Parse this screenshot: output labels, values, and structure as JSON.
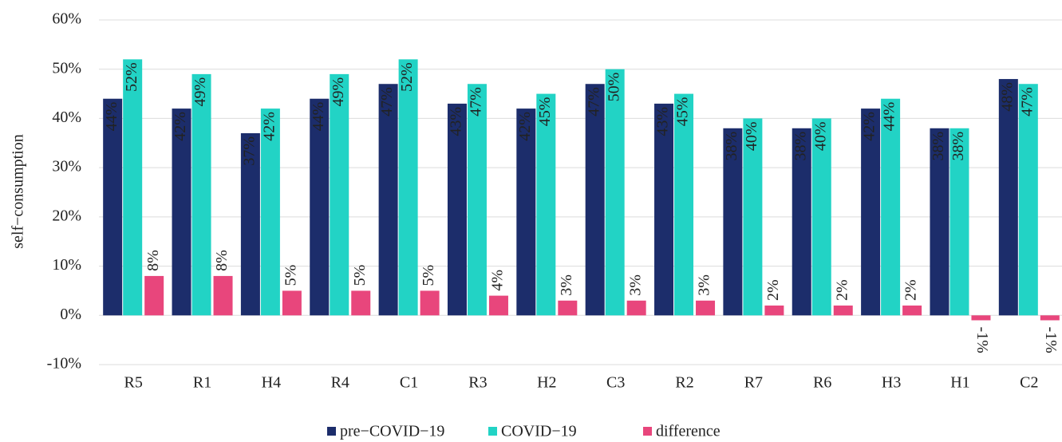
{
  "chart_data": {
    "type": "bar",
    "y_label": "self−consumption",
    "categories": [
      "R5",
      "R1",
      "H4",
      "R4",
      "C1",
      "R3",
      "H2",
      "C3",
      "R2",
      "R7",
      "R6",
      "H3",
      "H1",
      "C2"
    ],
    "series": [
      {
        "name": "pre−COVID−19",
        "color": "#1c2d6b",
        "values": [
          44,
          42,
          37,
          44,
          47,
          43,
          42,
          47,
          43,
          38,
          38,
          42,
          38,
          48
        ],
        "value_labels": [
          "44%",
          "42%",
          "37%",
          "44%",
          "47%",
          "43%",
          "42%",
          "47%",
          "43%",
          "38%",
          "38%",
          "42%",
          "38%",
          "48%"
        ]
      },
      {
        "name": "COVID−19",
        "color": "#22d3c5",
        "values": [
          52,
          49,
          42,
          49,
          52,
          47,
          45,
          50,
          45,
          40,
          40,
          44,
          38,
          47
        ],
        "value_labels": [
          "52%",
          "49%",
          "42%",
          "49%",
          "52%",
          "47%",
          "45%",
          "50%",
          "45%",
          "40%",
          "40%",
          "44%",
          "38%",
          "47%"
        ]
      },
      {
        "name": "difference",
        "color": "#e8467c",
        "values": [
          8,
          8,
          5,
          5,
          5,
          4,
          3,
          3,
          3,
          2,
          2,
          2,
          -1,
          -1
        ],
        "value_labels": [
          "8%",
          "8%",
          "5%",
          "5%",
          "5%",
          "4%",
          "3%",
          "3%",
          "3%",
          "2%",
          "2%",
          "2%",
          "-1%",
          "-1%"
        ]
      }
    ],
    "ylim": [
      -10,
      60
    ],
    "yticks": [
      {
        "value": -10,
        "label": "-10%"
      },
      {
        "value": 0,
        "label": "0%"
      },
      {
        "value": 10,
        "label": "10%"
      },
      {
        "value": 20,
        "label": "20%"
      },
      {
        "value": 30,
        "label": "30%"
      },
      {
        "value": 40,
        "label": "40%"
      },
      {
        "value": 50,
        "label": "50%"
      },
      {
        "value": 60,
        "label": "60%"
      }
    ],
    "grid": true
  }
}
